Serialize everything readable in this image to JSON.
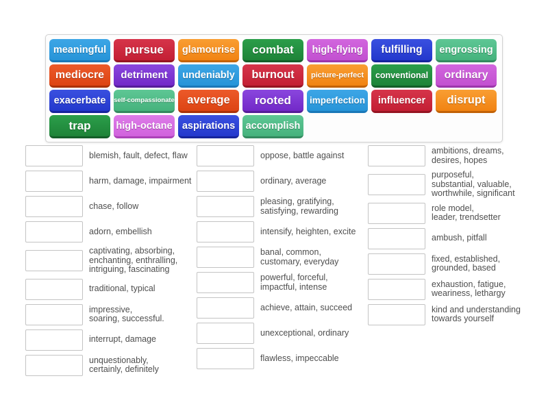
{
  "palette": {
    "lightblue": {
      "top": "#3da6e6",
      "base": "#2694d8",
      "edge": "#1a78b8"
    },
    "crimson": {
      "top": "#d6344a",
      "base": "#c31f34",
      "edge": "#951422"
    },
    "orange": {
      "top": "#f99e33",
      "base": "#f18312",
      "edge": "#c26206"
    },
    "green": {
      "top": "#2b9e4a",
      "base": "#1e8338",
      "edge": "#145e28"
    },
    "orchid": {
      "top": "#d266de",
      "base": "#c250d0",
      "edge": "#9c35ab"
    },
    "orchidlight": {
      "top": "#dd7ce8",
      "base": "#d162dd",
      "edge": "#ab42b8"
    },
    "royalblue": {
      "top": "#3a50e0",
      "base": "#2338cc",
      "edge": "#16249c"
    },
    "seagreen": {
      "top": "#5ec795",
      "base": "#45b27c",
      "edge": "#338a5f"
    },
    "orangered": {
      "top": "#ec5a2a",
      "base": "#dd4413",
      "edge": "#ab3209"
    },
    "purple": {
      "top": "#8a46de",
      "base": "#7229c8",
      "edge": "#551d99"
    }
  },
  "board": {
    "rows": [
      [
        {
          "label": "meaningful",
          "color": "lightblue",
          "size": 14.5
        },
        {
          "label": "pursue",
          "color": "crimson",
          "size": 17
        },
        {
          "label": "glamourise",
          "color": "orange",
          "size": 14.5
        },
        {
          "label": "combat",
          "color": "green",
          "size": 17
        },
        {
          "label": "high-flying",
          "color": "orchid",
          "size": 14.5
        },
        {
          "label": "fulfilling",
          "color": "royalblue",
          "size": 15.5
        },
        {
          "label": "engrossing",
          "color": "seagreen",
          "size": 14.5
        }
      ],
      [
        {
          "label": "mediocre",
          "color": "orangered",
          "size": 16
        },
        {
          "label": "detriment",
          "color": "purple",
          "size": 15
        },
        {
          "label": "undeniably",
          "color": "lightblue",
          "size": 14.5
        },
        {
          "label": "burnout",
          "color": "crimson",
          "size": 16.5
        },
        {
          "label": "picture-perfect",
          "color": "orange",
          "size": 11
        },
        {
          "label": "conventional",
          "color": "green",
          "size": 12.5
        },
        {
          "label": "ordinary",
          "color": "orchid",
          "size": 16
        }
      ],
      [
        {
          "label": "exacerbate",
          "color": "royalblue",
          "size": 14.5
        },
        {
          "label": "self-compassionate",
          "color": "seagreen",
          "size": 9.5
        },
        {
          "label": "average",
          "color": "orangered",
          "size": 16.5
        },
        {
          "label": "rooted",
          "color": "purple",
          "size": 17
        },
        {
          "label": "imperfection",
          "color": "lightblue",
          "size": 13.5
        },
        {
          "label": "influencer",
          "color": "crimson",
          "size": 14.5
        },
        {
          "label": "disrupt",
          "color": "orange",
          "size": 16.5
        }
      ],
      [
        {
          "label": "trap",
          "color": "green",
          "size": 17
        },
        {
          "label": "high-octane",
          "color": "orchidlight",
          "size": 14.5
        },
        {
          "label": "aspirations",
          "color": "royalblue",
          "size": 14.5
        },
        {
          "label": "accomplish",
          "color": "seagreen",
          "size": 14.5
        }
      ]
    ]
  },
  "matches": {
    "columns": [
      {
        "items": [
          "blemish, fault, defect, flaw",
          "harm, damage, impairment",
          "chase, follow",
          "adorn, embellish",
          "captivating, absorbing,\nenchanting, enthralling,\nintriguing, fascinating",
          "traditional, typical",
          "impressive,\nsoaring, successful.",
          "interrupt, damage",
          "unquestionably,\ncertainly, definitely"
        ]
      },
      {
        "items": [
          "oppose, battle against",
          "ordinary, average",
          "pleasing, gratifying,\nsatisfying, rewarding",
          "intensify, heighten, excite",
          "banal, common,\ncustomary, everyday",
          "powerful, forceful,\nimpactful, intense",
          "achieve, attain, succeed",
          "unexceptional, ordinary",
          "flawless, impeccable"
        ]
      },
      {
        "items": [
          "ambitions, dreams,\ndesires, hopes",
          "purposeful,\nsubstantial, valuable,\nworthwhile, significant",
          "role model,\nleader, trendsetter",
          "ambush, pitfall",
          "fixed, established,\ngrounded, based",
          "exhaustion, fatigue,\nweariness, lethargy",
          "kind and understanding\ntowards yourself"
        ]
      }
    ]
  }
}
